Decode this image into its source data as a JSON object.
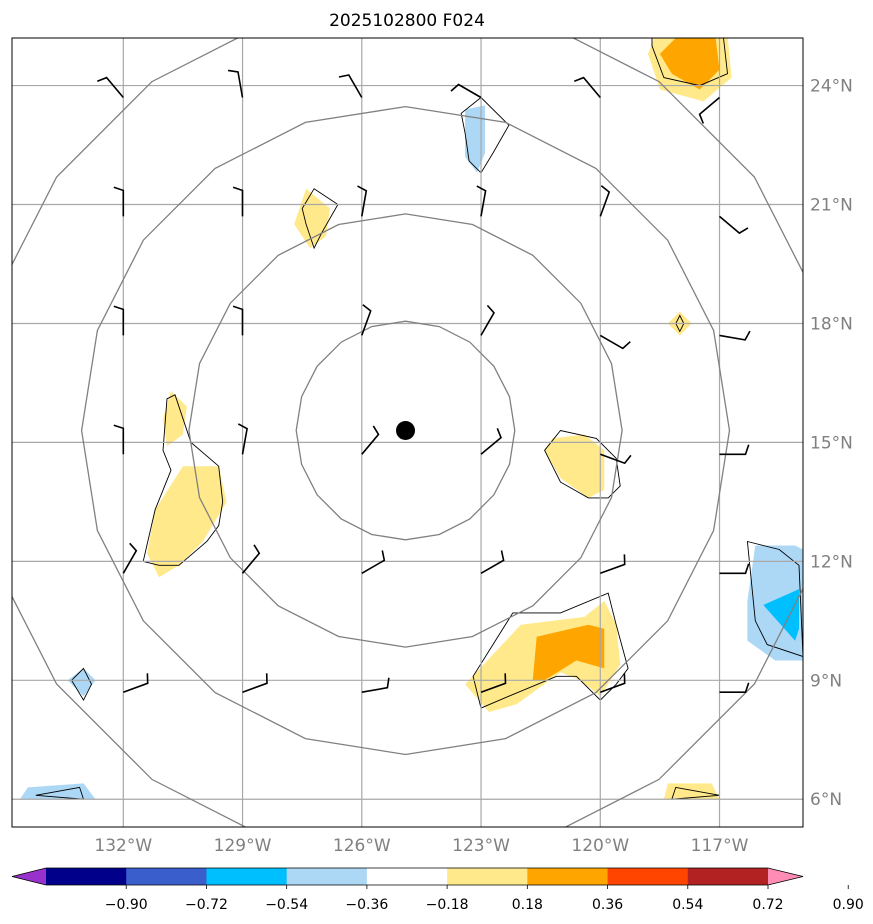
{
  "chart_data": {
    "type": "map-contour",
    "title": "2025102800 F024",
    "x_ticks": [
      {
        "lon": -132,
        "label": "132°W"
      },
      {
        "lon": -129,
        "label": "129°W"
      },
      {
        "lon": -126,
        "label": "126°W"
      },
      {
        "lon": -123,
        "label": "123°W"
      },
      {
        "lon": -120,
        "label": "120°W"
      },
      {
        "lon": -117,
        "label": "117°W"
      }
    ],
    "y_ticks": [
      {
        "lat": 6,
        "label": "6°N"
      },
      {
        "lat": 9,
        "label": "9°N"
      },
      {
        "lat": 12,
        "label": "12°N"
      },
      {
        "lat": 15,
        "label": "15°N"
      },
      {
        "lat": 18,
        "label": "18°N"
      },
      {
        "lat": 21,
        "label": "21°N"
      },
      {
        "lat": 24,
        "label": "24°N"
      }
    ],
    "lon_range": [
      -134.8,
      -114.9
    ],
    "lat_range": [
      5.3,
      25.2
    ],
    "center": {
      "lon": -124.9,
      "lat": 15.3
    },
    "range_rings_deg": [
      2.75,
      5.45,
      8.15,
      10.85
    ],
    "colorbar": {
      "boundaries": [
        -0.9,
        -0.72,
        -0.54,
        -0.36,
        -0.18,
        0.18,
        0.36,
        0.54,
        0.72,
        0.9
      ],
      "tick_labels": [
        "−0.90",
        "−0.72",
        "−0.54",
        "−0.36",
        "−0.18",
        "0.18",
        "0.36",
        "0.54",
        "0.72",
        "0.90"
      ],
      "colors": [
        "#9932cc",
        "#00008b",
        "#3a5fcd",
        "#00bfff",
        "#add8f5",
        "#ffffff",
        "#ffe98a",
        "#ffa500",
        "#ff4500",
        "#b22222",
        "#ff8cb4"
      ]
    },
    "fields": [
      {
        "level": "0.18 to 0.36",
        "color": "#ffe98a",
        "regions": [
          [
            [
              -118.6,
              25.3
            ],
            [
              -116.8,
              25.3
            ],
            [
              -116.7,
              24.2
            ],
            [
              -117.4,
              23.6
            ],
            [
              -118.5,
              23.9
            ],
            [
              -118.8,
              24.8
            ]
          ],
          [
            [
              -127.4,
              21.4
            ],
            [
              -126.8,
              20.9
            ],
            [
              -126.9,
              20.2
            ],
            [
              -127.3,
              19.9
            ],
            [
              -127.7,
              20.5
            ]
          ],
          [
            [
              -130.8,
              16.3
            ],
            [
              -130.4,
              15.9
            ],
            [
              -130.5,
              15.2
            ],
            [
              -130.9,
              14.9
            ],
            [
              -131.0,
              15.6
            ]
          ],
          [
            [
              -130.5,
              14.4
            ],
            [
              -129.6,
              14.4
            ],
            [
              -129.4,
              13.5
            ],
            [
              -130.0,
              12.5
            ],
            [
              -130.6,
              11.9
            ],
            [
              -131.1,
              11.6
            ],
            [
              -131.4,
              12.2
            ],
            [
              -131.2,
              13.3
            ]
          ],
          [
            [
              -121.2,
              15.1
            ],
            [
              -120.4,
              15.2
            ],
            [
              -119.9,
              14.8
            ],
            [
              -119.9,
              13.8
            ],
            [
              -120.3,
              13.6
            ],
            [
              -121.0,
              14.1
            ],
            [
              -121.4,
              14.8
            ]
          ],
          [
            [
              -118.0,
              18.3
            ],
            [
              -117.7,
              18.0
            ],
            [
              -118.0,
              17.7
            ],
            [
              -118.3,
              18.0
            ]
          ],
          [
            [
              -122.0,
              10.4
            ],
            [
              -120.4,
              10.6
            ],
            [
              -119.9,
              11.0
            ],
            [
              -119.6,
              10.4
            ],
            [
              -119.5,
              9.4
            ],
            [
              -120.0,
              8.6
            ],
            [
              -120.5,
              9.0
            ],
            [
              -121.0,
              9.2
            ],
            [
              -122.1,
              8.4
            ],
            [
              -122.8,
              8.2
            ],
            [
              -123.4,
              8.9
            ]
          ],
          [
            [
              -118.3,
              6.4
            ],
            [
              -117.2,
              6.4
            ],
            [
              -117.0,
              6.0
            ],
            [
              -118.4,
              6.0
            ]
          ]
        ]
      },
      {
        "level": "0.36 to 0.54",
        "color": "#ffa500",
        "regions": [
          [
            [
              -118.1,
              25.2
            ],
            [
              -117.1,
              25.2
            ],
            [
              -117.0,
              24.4
            ],
            [
              -117.5,
              23.9
            ],
            [
              -118.2,
              24.3
            ],
            [
              -118.5,
              24.8
            ]
          ],
          [
            [
              -121.6,
              10.1
            ],
            [
              -120.3,
              10.4
            ],
            [
              -119.9,
              10.3
            ],
            [
              -119.9,
              9.3
            ],
            [
              -120.6,
              9.5
            ],
            [
              -121.4,
              9.0
            ],
            [
              -121.7,
              9.0
            ]
          ]
        ]
      },
      {
        "level": "-0.36 to -0.18",
        "color": "#add8f5",
        "regions": [
          [
            [
              -123.4,
              23.4
            ],
            [
              -122.9,
              23.5
            ],
            [
              -122.9,
              22.3
            ],
            [
              -123.1,
              21.8
            ],
            [
              -123.4,
              22.2
            ]
          ],
          [
            [
              -116.1,
              12.4
            ],
            [
              -115.1,
              12.4
            ],
            [
              -114.9,
              12.3
            ],
            [
              -114.9,
              9.5
            ],
            [
              -115.6,
              9.5
            ],
            [
              -116.3,
              10.0
            ],
            [
              -116.3,
              11.0
            ]
          ],
          [
            [
              -133.0,
              9.3
            ],
            [
              -132.7,
              9.0
            ],
            [
              -133.0,
              8.6
            ],
            [
              -133.4,
              9.0
            ]
          ],
          [
            [
              -134.4,
              6.3
            ],
            [
              -133.0,
              6.4
            ],
            [
              -132.7,
              6.0
            ],
            [
              -134.6,
              6.0
            ]
          ]
        ]
      },
      {
        "level": "-0.54 to -0.36",
        "color": "#00bfff",
        "regions": [
          [
            [
              -115.9,
              10.9
            ],
            [
              -115.0,
              11.3
            ],
            [
              -115.0,
              10.3
            ],
            [
              -115.1,
              10.0
            ]
          ]
        ]
      }
    ],
    "outlines": [
      [
        [
          -118.7,
          25.2
        ],
        [
          -116.9,
          25.2
        ],
        [
          -116.8,
          24.3
        ],
        [
          -117.5,
          24.0
        ],
        [
          -118.4,
          24.2
        ],
        [
          -118.7,
          25.0
        ]
      ],
      [
        [
          -123.5,
          23.3
        ],
        [
          -123.0,
          23.7
        ],
        [
          -122.3,
          23.0
        ],
        [
          -122.7,
          22.3
        ],
        [
          -123.0,
          21.8
        ],
        [
          -123.3,
          22.1
        ],
        [
          -123.4,
          22.8
        ]
      ],
      [
        [
          -127.5,
          20.9
        ],
        [
          -127.2,
          21.4
        ],
        [
          -126.6,
          21.0
        ],
        [
          -127.0,
          20.3
        ],
        [
          -127.2,
          19.9
        ],
        [
          -127.4,
          20.5
        ]
      ],
      [
        [
          -130.9,
          16.1
        ],
        [
          -130.7,
          16.2
        ],
        [
          -130.3,
          15.0
        ],
        [
          -129.6,
          14.4
        ],
        [
          -129.5,
          13.5
        ],
        [
          -129.6,
          12.9
        ],
        [
          -129.9,
          12.5
        ],
        [
          -130.6,
          11.9
        ],
        [
          -131.1,
          11.9
        ],
        [
          -131.5,
          12.0
        ],
        [
          -131.2,
          13.3
        ],
        [
          -130.8,
          14.3
        ],
        [
          -131.0,
          14.8
        ]
      ],
      [
        [
          -121.4,
          14.8
        ],
        [
          -121.0,
          15.3
        ],
        [
          -120.1,
          15.1
        ],
        [
          -119.6,
          14.6
        ],
        [
          -119.5,
          13.9
        ],
        [
          -119.8,
          13.6
        ],
        [
          -120.3,
          13.6
        ],
        [
          -121.0,
          14.0
        ]
      ],
      [
        [
          -118.0,
          18.2
        ],
        [
          -117.9,
          18.0
        ],
        [
          -118.0,
          17.8
        ],
        [
          -118.1,
          18.0
        ]
      ],
      [
        [
          -122.2,
          10.7
        ],
        [
          -121.0,
          10.7
        ],
        [
          -119.8,
          11.2
        ],
        [
          -119.6,
          10.4
        ],
        [
          -119.3,
          9.3
        ],
        [
          -119.6,
          8.9
        ],
        [
          -120.0,
          8.5
        ],
        [
          -120.6,
          9.1
        ],
        [
          -121.1,
          9.1
        ],
        [
          -122.3,
          8.6
        ],
        [
          -123.0,
          8.3
        ],
        [
          -123.2,
          9.1
        ]
      ],
      [
        [
          -116.3,
          12.5
        ],
        [
          -115.5,
          12.3
        ],
        [
          -115.0,
          11.9
        ],
        [
          -114.9,
          9.6
        ],
        [
          -115.8,
          9.9
        ],
        [
          -116.1,
          10.5
        ]
      ],
      [
        [
          -133.0,
          9.3
        ],
        [
          -132.8,
          8.9
        ],
        [
          -133.0,
          8.5
        ],
        [
          -133.3,
          9.0
        ]
      ],
      [
        [
          -134.2,
          6.1
        ],
        [
          -133.1,
          6.3
        ],
        [
          -133.0,
          6.0
        ]
      ],
      [
        [
          -118.1,
          6.3
        ],
        [
          -117.0,
          6.1
        ],
        [
          -118.2,
          6.0
        ]
      ]
    ],
    "wind_barbs": [
      {
        "lon": -132,
        "lat": 23.7,
        "deg": 320
      },
      {
        "lon": -129,
        "lat": 23.7,
        "deg": 350
      },
      {
        "lon": -126,
        "lat": 23.7,
        "deg": 330
      },
      {
        "lon": -123,
        "lat": 23.7,
        "deg": 300
      },
      {
        "lon": -120,
        "lat": 23.7,
        "deg": 320
      },
      {
        "lon": -117,
        "lat": 23.7,
        "deg": 230
      },
      {
        "lon": -132,
        "lat": 20.7,
        "deg": 0
      },
      {
        "lon": -129,
        "lat": 20.7,
        "deg": 0
      },
      {
        "lon": -126,
        "lat": 20.7,
        "deg": 10
      },
      {
        "lon": -123,
        "lat": 20.7,
        "deg": 10
      },
      {
        "lon": -120,
        "lat": 20.7,
        "deg": 20
      },
      {
        "lon": -117,
        "lat": 20.7,
        "deg": 130
      },
      {
        "lon": -132,
        "lat": 17.7,
        "deg": 0
      },
      {
        "lon": -129,
        "lat": 17.7,
        "deg": 0
      },
      {
        "lon": -126,
        "lat": 17.7,
        "deg": 20
      },
      {
        "lon": -123,
        "lat": 17.7,
        "deg": 30
      },
      {
        "lon": -120,
        "lat": 17.7,
        "deg": 120
      },
      {
        "lon": -117,
        "lat": 17.7,
        "deg": 100
      },
      {
        "lon": -132,
        "lat": 14.7,
        "deg": 0
      },
      {
        "lon": -129,
        "lat": 14.7,
        "deg": 10
      },
      {
        "lon": -126,
        "lat": 14.7,
        "deg": 40
      },
      {
        "lon": -123,
        "lat": 14.7,
        "deg": 50
      },
      {
        "lon": -120,
        "lat": 14.7,
        "deg": 110
      },
      {
        "lon": -117,
        "lat": 14.7,
        "deg": 90
      },
      {
        "lon": -132,
        "lat": 11.7,
        "deg": 30
      },
      {
        "lon": -129,
        "lat": 11.7,
        "deg": 40
      },
      {
        "lon": -126,
        "lat": 11.7,
        "deg": 60
      },
      {
        "lon": -123,
        "lat": 11.7,
        "deg": 60
      },
      {
        "lon": -120,
        "lat": 11.7,
        "deg": 70
      },
      {
        "lon": -117,
        "lat": 11.7,
        "deg": 90
      },
      {
        "lon": -132,
        "lat": 8.7,
        "deg": 70
      },
      {
        "lon": -129,
        "lat": 8.7,
        "deg": 70
      },
      {
        "lon": -126,
        "lat": 8.7,
        "deg": 80
      },
      {
        "lon": -123,
        "lat": 8.7,
        "deg": 70
      },
      {
        "lon": -120,
        "lat": 8.7,
        "deg": 70
      },
      {
        "lon": -117,
        "lat": 8.7,
        "deg": 90
      }
    ]
  }
}
